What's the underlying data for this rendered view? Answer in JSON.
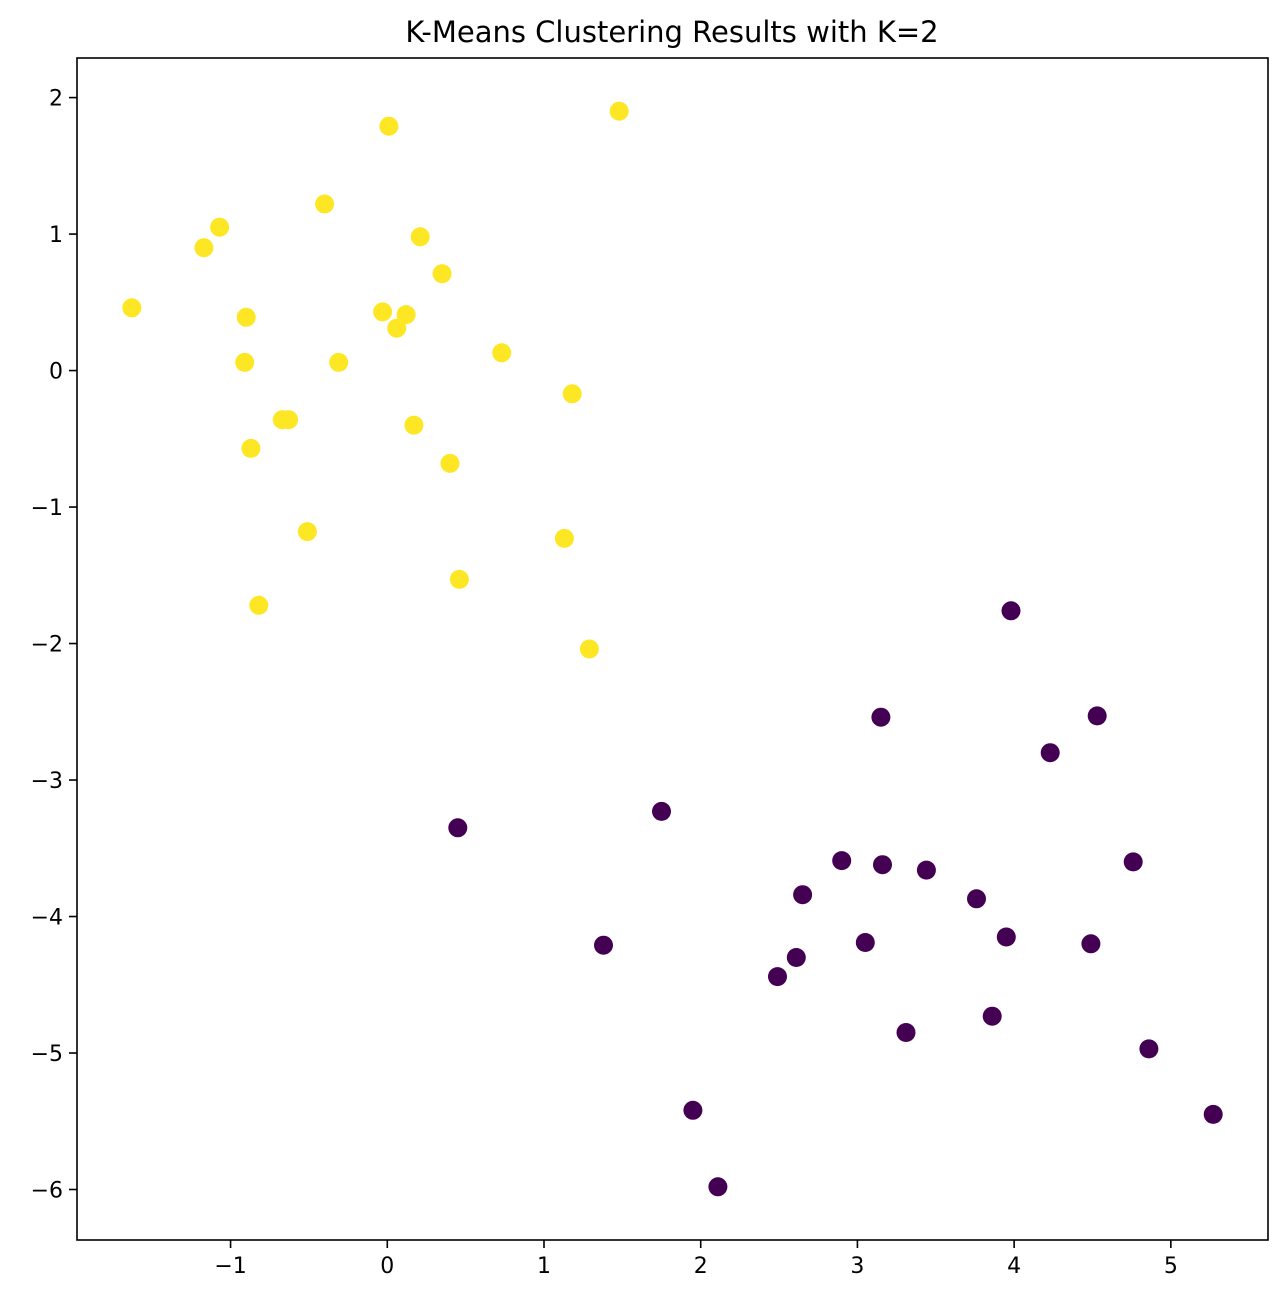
{
  "chart_data": {
    "type": "scatter",
    "title": "K-Means Clustering Results with K=2",
    "xlabel": "",
    "ylabel": "",
    "xlim": [
      -1.98,
      5.62
    ],
    "ylim": [
      -6.37,
      2.29
    ],
    "x_ticks": [
      -1,
      0,
      1,
      2,
      3,
      4,
      5
    ],
    "y_ticks": [
      2,
      1,
      0,
      -1,
      -2,
      -3,
      -4,
      -5,
      -6
    ],
    "x_tick_labels": [
      "−1",
      "0",
      "1",
      "2",
      "3",
      "4",
      "5"
    ],
    "y_tick_labels": [
      "2",
      "1",
      "0",
      "−1",
      "−2",
      "−3",
      "−4",
      "−5",
      "−6"
    ],
    "grid": false,
    "legend": "none",
    "colors": {
      "cluster_0": "#440154",
      "cluster_1": "#fde725"
    },
    "series": [
      {
        "cluster": 0,
        "color": "#440154",
        "points": [
          [
            0.45,
            -3.35
          ],
          [
            1.75,
            -3.23
          ],
          [
            1.38,
            -4.21
          ],
          [
            1.95,
            -5.42
          ],
          [
            2.11,
            -5.98
          ],
          [
            2.49,
            -4.44
          ],
          [
            2.61,
            -4.3
          ],
          [
            2.65,
            -3.84
          ],
          [
            2.9,
            -3.59
          ],
          [
            3.05,
            -4.19
          ],
          [
            3.15,
            -2.54
          ],
          [
            3.16,
            -3.62
          ],
          [
            3.31,
            -4.85
          ],
          [
            3.44,
            -3.66
          ],
          [
            3.76,
            -3.87
          ],
          [
            3.86,
            -4.73
          ],
          [
            3.95,
            -4.15
          ],
          [
            3.98,
            -1.76
          ],
          [
            4.23,
            -2.8
          ],
          [
            4.49,
            -4.2
          ],
          [
            4.53,
            -2.53
          ],
          [
            4.76,
            -3.6
          ],
          [
            4.86,
            -4.97
          ],
          [
            5.27,
            -5.45
          ]
        ]
      },
      {
        "cluster": 1,
        "color": "#fde725",
        "points": [
          [
            -1.63,
            0.46
          ],
          [
            -1.17,
            0.9
          ],
          [
            -1.07,
            1.05
          ],
          [
            -0.9,
            0.39
          ],
          [
            -0.91,
            0.06
          ],
          [
            -0.87,
            -0.57
          ],
          [
            -0.82,
            -1.72
          ],
          [
            -0.67,
            -0.36
          ],
          [
            -0.63,
            -0.36
          ],
          [
            -0.51,
            -1.18
          ],
          [
            -0.4,
            1.22
          ],
          [
            -0.31,
            0.06
          ],
          [
            -0.03,
            0.43
          ],
          [
            0.01,
            1.79
          ],
          [
            0.06,
            0.31
          ],
          [
            0.12,
            0.41
          ],
          [
            0.17,
            -0.4
          ],
          [
            0.21,
            0.98
          ],
          [
            0.35,
            0.71
          ],
          [
            0.4,
            -0.68
          ],
          [
            0.46,
            -1.53
          ],
          [
            0.73,
            0.13
          ],
          [
            1.13,
            -1.23
          ],
          [
            1.18,
            -0.17
          ],
          [
            1.29,
            -2.04
          ],
          [
            1.48,
            1.9
          ]
        ]
      }
    ]
  }
}
